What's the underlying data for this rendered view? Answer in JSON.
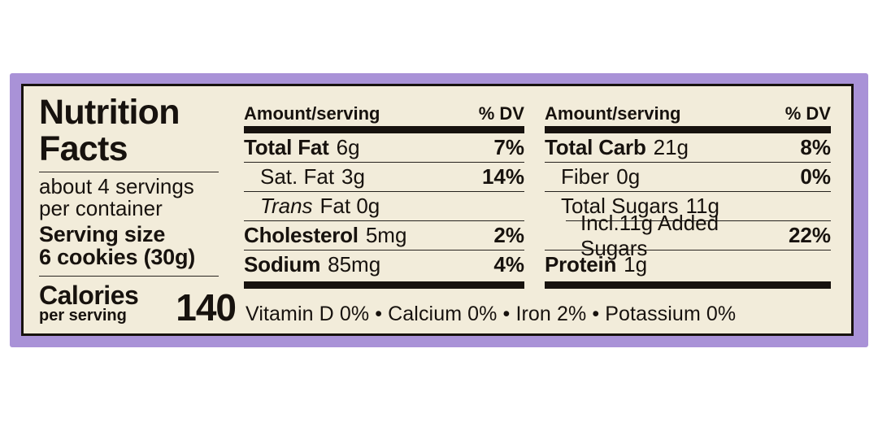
{
  "colors": {
    "frame_purple": "#a992d7",
    "panel_cream": "#f2ecda",
    "ink_black": "#17120e"
  },
  "label": {
    "title1": "Nutrition",
    "title2": "Facts",
    "servings1": "about 4 servings",
    "servings2": "per container",
    "serving_size1": "Serving size",
    "serving_size2": "6 cookies (30g)",
    "calories_word": "Calories",
    "calories_sub": "per serving",
    "calories_value": "140"
  },
  "table": {
    "header_amount": "Amount/serving",
    "header_dv": "% DV",
    "mid": [
      {
        "name": "Total Fat",
        "value": "6g",
        "dv": "7%"
      },
      {
        "name": "Sat. Fat",
        "value": "3g",
        "dv": "14%"
      },
      {
        "name": "Trans",
        "value": "Fat 0g",
        "dv": ""
      },
      {
        "name": "Cholesterol",
        "value": "5mg",
        "dv": "2%"
      },
      {
        "name": "Sodium",
        "value": "85mg",
        "dv": "4%"
      }
    ],
    "right": [
      {
        "name": "Total Carb",
        "value": "21g",
        "dv": "8%"
      },
      {
        "name": "Fiber",
        "value": "0g",
        "dv": "0%"
      },
      {
        "name": "Total Sugars",
        "value": "11g",
        "dv": ""
      },
      {
        "name": "Incl.11g Added Sugars",
        "value": "",
        "dv": "22%"
      },
      {
        "name": "Protein",
        "value": "1g",
        "dv": ""
      }
    ]
  },
  "footnote": {
    "text": "Vitamin D 0% • Calcium 0% • Iron 2% • Potassium 0%"
  }
}
